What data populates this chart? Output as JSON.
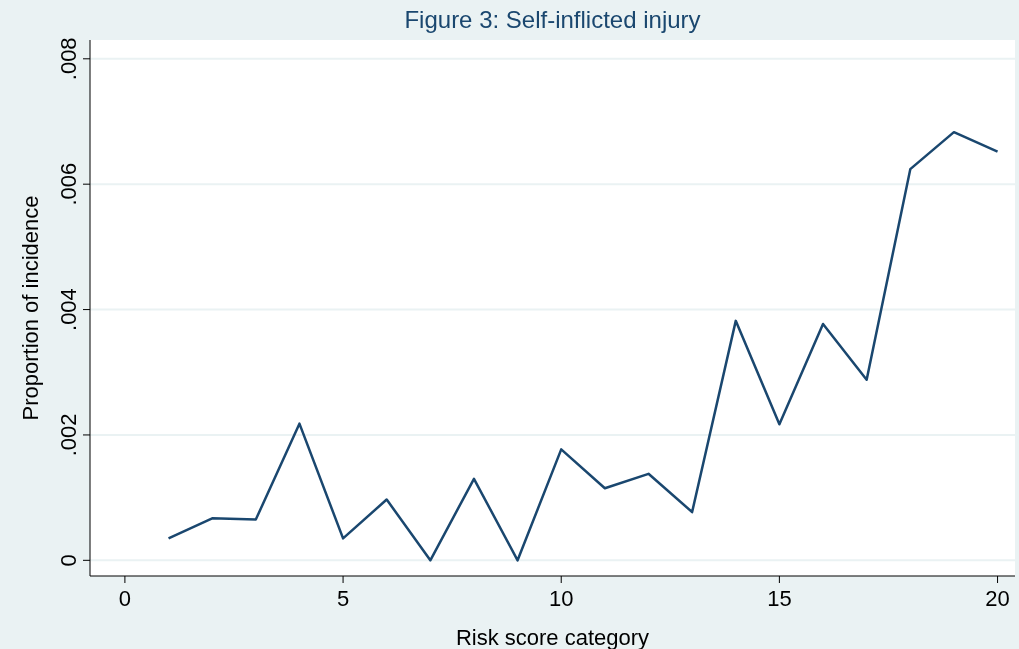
{
  "chart_data": {
    "type": "line",
    "title": "Figure 3: Self-inflicted injury",
    "xlabel": "Risk score category",
    "ylabel": "Proportion of incidence",
    "x": [
      1,
      2,
      3,
      4,
      5,
      6,
      7,
      8,
      9,
      10,
      11,
      12,
      13,
      14,
      15,
      16,
      17,
      18,
      19,
      20
    ],
    "series": [
      {
        "color": "#1a476f",
        "values": [
          0.00035,
          0.00067,
          0.00065,
          0.00218,
          0.00035,
          0.00097,
          0,
          0.0013,
          0,
          0.00177,
          0.00115,
          0.00138,
          0.00077,
          0.00382,
          0.00217,
          0.00377,
          0.00288,
          0.00624,
          0.00683,
          0.00652
        ]
      }
    ],
    "xlim": [
      -0.8,
      20.4
    ],
    "xticks": [
      0,
      5,
      10,
      15,
      20
    ],
    "ylim": [
      -0.00025,
      0.0083
    ],
    "yticks": [
      {
        "value": 0,
        "label": "0"
      },
      {
        "value": 0.002,
        "label": ".002"
      },
      {
        "value": 0.004,
        "label": ".004"
      },
      {
        "value": 0.006,
        "label": ".006"
      },
      {
        "value": 0.008,
        "label": ".008"
      }
    ],
    "grid": "y",
    "marker": "none",
    "line_style": "solid"
  }
}
